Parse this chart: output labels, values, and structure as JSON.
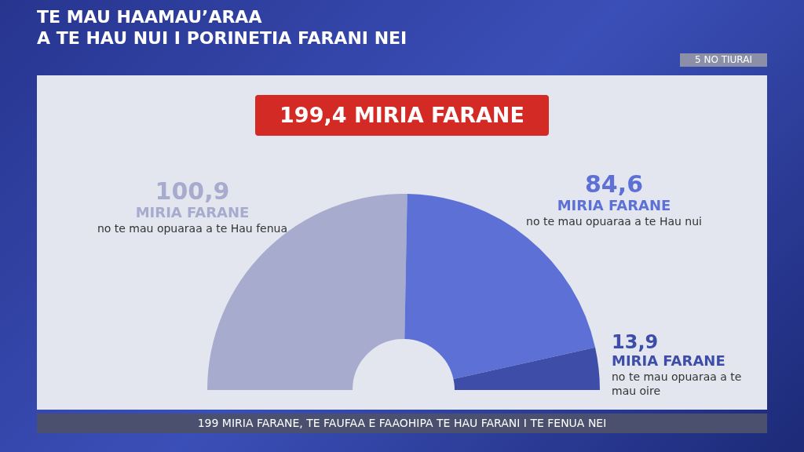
{
  "chart_data": {
    "type": "donut",
    "title": "TE MAU HAAMAU’ARAA\nA TE HAU NUI I PORINETIA FARANI NEI",
    "subtitle": "199,4 MIRIA FARANE",
    "categories": [
      "no te mau opuaraa a te Hau fenua",
      "no te mau opuaraa a te Hau nui",
      "no te mau opuaraa a te mau oire"
    ],
    "values": [
      100.9,
      84.6,
      13.9
    ],
    "value_labels": [
      "100,9",
      "84,6",
      "13,9"
    ],
    "colors": [
      "#a7abcd",
      "#5d70d6",
      "#3e4ea8"
    ],
    "annotations": [
      {
        "text": "MIRIA FARANE",
        "x": "no te mau opuaraa a te Hau fenua"
      },
      {
        "text": "MIRIA FARANE",
        "x": "no te mau opuaraa a te Hau nui"
      },
      {
        "text": "MIRIA FARANE",
        "x": "no te mau opuaraa a te mau oire"
      },
      "5 NO TIURAI",
      "199 MIRIA FARANE, TE FAUFAA E FAAOHIPA TE HAU FARANI I TE FENUA NEI"
    ],
    "legend": false
  }
}
